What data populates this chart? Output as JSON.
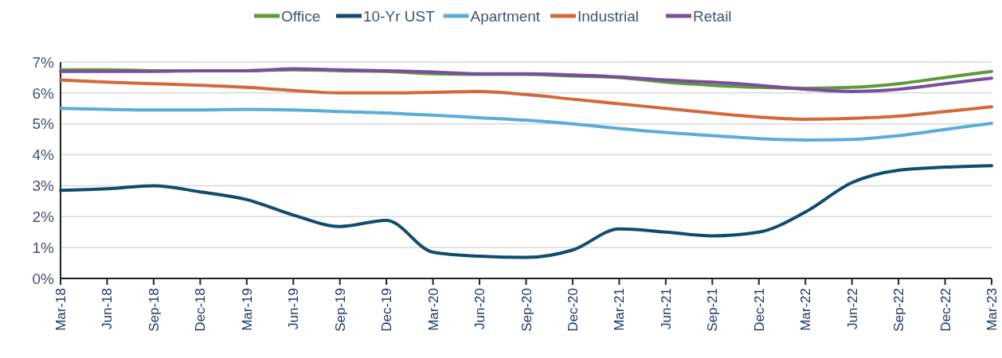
{
  "chart_data": {
    "type": "line",
    "categories": [
      "Mar-18",
      "Jun-18",
      "Sep-18",
      "Dec-18",
      "Mar-19",
      "Jun-19",
      "Sep-19",
      "Dec-19",
      "Mar-20",
      "Jun-20",
      "Sep-20",
      "Dec-20",
      "Mar-21",
      "Jun-21",
      "Sep-21",
      "Dec-21",
      "Mar-22",
      "Jun-22",
      "Sep-22",
      "Dec-22",
      "Mar-23"
    ],
    "series": [
      {
        "name": "Office",
        "color": "#5e9a3c",
        "values": [
          6.75,
          6.75,
          6.72,
          6.72,
          6.72,
          6.75,
          6.72,
          6.7,
          6.62,
          6.6,
          6.6,
          6.55,
          6.5,
          6.35,
          6.25,
          6.18,
          6.15,
          6.18,
          6.3,
          6.5,
          6.7
        ]
      },
      {
        "name": "10-Yr UST",
        "color": "#0f4c6e",
        "values": [
          2.85,
          2.9,
          3.0,
          2.8,
          2.55,
          2.05,
          1.68,
          1.88,
          0.85,
          0.72,
          0.68,
          0.92,
          1.6,
          1.5,
          1.38,
          1.5,
          2.15,
          3.1,
          3.5,
          3.6,
          3.65
        ]
      },
      {
        "name": "Apartment",
        "color": "#5aadd6",
        "values": [
          5.5,
          5.47,
          5.45,
          5.45,
          5.47,
          5.45,
          5.4,
          5.35,
          5.28,
          5.2,
          5.12,
          5.0,
          4.85,
          4.72,
          4.62,
          4.52,
          4.48,
          4.5,
          4.62,
          4.82,
          5.02
        ]
      },
      {
        "name": "Industrial",
        "color": "#d2693a",
        "values": [
          6.42,
          6.35,
          6.3,
          6.25,
          6.18,
          6.08,
          6.0,
          6.0,
          6.02,
          6.05,
          5.95,
          5.8,
          5.65,
          5.5,
          5.35,
          5.22,
          5.15,
          5.18,
          5.25,
          5.4,
          5.55
        ]
      },
      {
        "name": "Retail",
        "color": "#7a4d9e",
        "values": [
          6.7,
          6.7,
          6.7,
          6.72,
          6.72,
          6.78,
          6.75,
          6.72,
          6.68,
          6.62,
          6.62,
          6.58,
          6.52,
          6.42,
          6.35,
          6.25,
          6.12,
          6.05,
          6.12,
          6.3,
          6.48
        ]
      }
    ],
    "ylim": [
      0,
      7
    ],
    "yticks": [
      {
        "value": 0,
        "label": "0%"
      },
      {
        "value": 1,
        "label": "1%"
      },
      {
        "value": 2,
        "label": "2%"
      },
      {
        "value": 3,
        "label": "3%"
      },
      {
        "value": 4,
        "label": "4%"
      },
      {
        "value": 5,
        "label": "5%"
      },
      {
        "value": 6,
        "label": "6%"
      },
      {
        "value": 7,
        "label": "7%"
      }
    ],
    "grid": "y",
    "legend": "top",
    "marker": "none",
    "line_style": "solid"
  }
}
